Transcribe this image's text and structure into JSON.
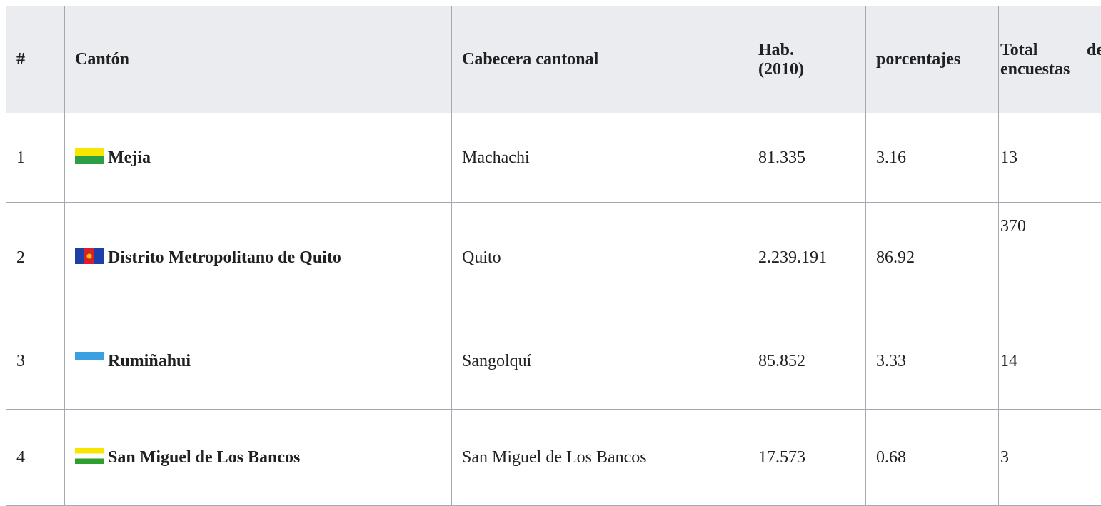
{
  "table": {
    "header": [
      "#",
      "Cantón",
      "Cabecera cantonal",
      "Hab. (2010)",
      "porcentajes",
      "Total de encuestas"
    ],
    "rows": [
      [
        "1",
        "Mejía",
        "Machachi",
        "81.335",
        "3.16",
        "13"
      ],
      [
        "2",
        "Distrito Metropolitano de Quito",
        "Quito",
        "2.239.191",
        "86.92",
        "370"
      ],
      [
        "3",
        "Rumiñahui",
        "Sangolquí",
        "85.852",
        "3.33",
        "14"
      ],
      [
        "4",
        "San Miguel de Los Bancos",
        "San Miguel de Los Bancos",
        "17.573",
        "0.68",
        "3"
      ]
    ]
  }
}
